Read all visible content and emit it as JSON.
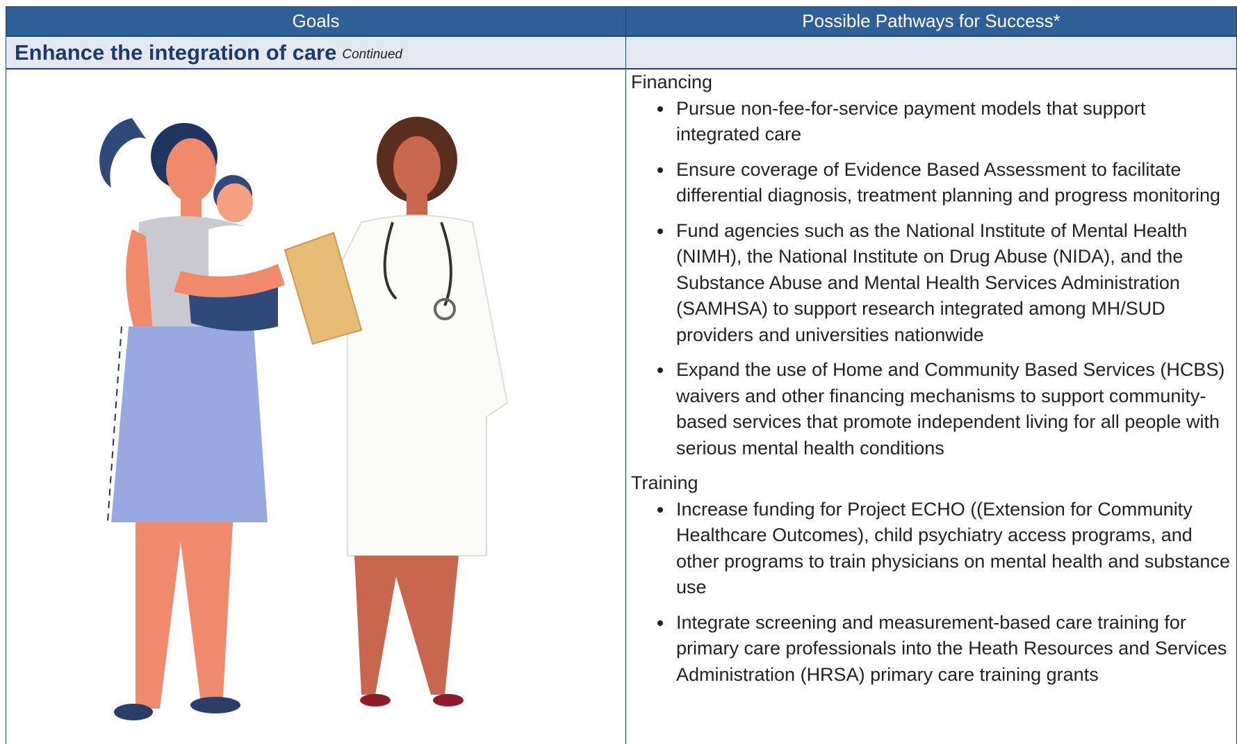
{
  "table": {
    "columns": [
      "Goals",
      "Possible Pathways for Success*"
    ],
    "section": {
      "title": "Enhance the integration of care",
      "note": "Continued"
    },
    "groups": [
      {
        "heading": "Financing",
        "items": [
          "Pursue non-fee-for-service payment models that support integrated care",
          "Ensure coverage of Evidence Based Assessment to facilitate differential diagnosis, treatment planning and progress monitoring",
          "Fund agencies such as the National Institute of Mental Health (NIMH), the National Institute on Drug Abuse (NIDA), and the Substance Abuse and Mental Health Services Administration (SAMHSA) to support research integrated among MH/SUD providers and universities nationwide",
          "Expand the use of Home and Community Based Services (HCBS) waivers and other financing mechanisms to support community-based services that promote independent living for all people with serious mental health conditions"
        ]
      },
      {
        "heading": "Training",
        "items": [
          "Increase funding for Project ECHO ((Extension for Community Healthcare Outcomes), child psychiatry access programs, and other programs to train physicians on mental health and substance use",
          "Integrate screening and measurement-based care training for primary care professionals into the Heath Resources and Services Administration (HRSA) primary care training grants"
        ]
      }
    ]
  }
}
